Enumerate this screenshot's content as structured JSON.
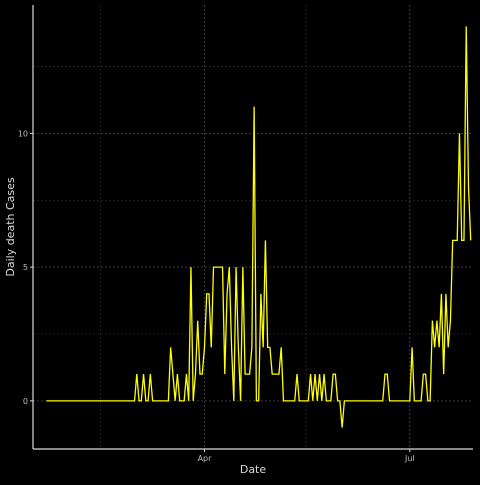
{
  "chart_data": {
    "type": "line",
    "title": "",
    "xlabel": "Date",
    "ylabel": "Daily death Cases",
    "x_start": "2020-01-22",
    "x_end": "2020-07-24",
    "xlim": [
      "2020-01-16",
      "2020-07-29"
    ],
    "ylim": [
      -1.8,
      14.8
    ],
    "x_ticks": [
      {
        "date": "2020-04-01",
        "label": "Apr"
      },
      {
        "date": "2020-07-01",
        "label": "Jul"
      }
    ],
    "x_minor_ticks": [
      "2020-02-15",
      "2020-05-16"
    ],
    "y_ticks": [
      0,
      5,
      10
    ],
    "y_minor_ticks": [
      2.5,
      7.5,
      12.5
    ],
    "grid": true,
    "series": [
      {
        "name": "",
        "color": "#ffff00",
        "values": [
          0,
          0,
          0,
          0,
          0,
          0,
          0,
          0,
          0,
          0,
          0,
          0,
          0,
          0,
          0,
          0,
          0,
          0,
          0,
          0,
          0,
          0,
          0,
          0,
          0,
          0,
          0,
          0,
          0,
          0,
          0,
          0,
          0,
          0,
          0,
          0,
          0,
          0,
          0,
          0,
          1,
          0,
          0,
          1,
          0,
          0,
          1,
          0,
          0,
          0,
          0,
          0,
          0,
          0,
          0,
          2,
          1,
          0,
          1,
          0,
          0,
          0,
          1,
          0,
          5,
          0,
          1,
          3,
          1,
          1,
          2,
          4,
          4,
          2,
          5,
          5,
          5,
          5,
          5,
          1,
          4,
          5,
          2,
          0,
          5,
          2,
          0,
          5,
          1,
          1,
          1,
          2,
          11,
          0,
          0,
          4,
          2,
          6,
          2,
          2,
          1,
          1,
          1,
          1,
          2,
          0,
          0,
          0,
          0,
          0,
          0,
          1,
          0,
          0,
          0,
          0,
          0,
          1,
          0,
          1,
          0,
          1,
          0,
          1,
          0,
          0,
          0,
          1,
          1,
          0,
          0,
          -1,
          0,
          0,
          0,
          0,
          0,
          0,
          0,
          0,
          0,
          0,
          0,
          0,
          0,
          0,
          0,
          0,
          0,
          0,
          1,
          1,
          0,
          0,
          0,
          0,
          0,
          0,
          0,
          0,
          0,
          0,
          2,
          0,
          0,
          0,
          0,
          1,
          1,
          0,
          0,
          3,
          2,
          3,
          2,
          4,
          1,
          4,
          2,
          3,
          6,
          6,
          6,
          10,
          6,
          6,
          14,
          8,
          6
        ]
      }
    ]
  }
}
